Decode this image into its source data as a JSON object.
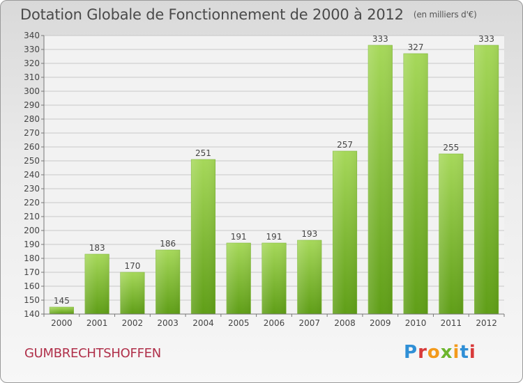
{
  "header": {
    "title": "Dotation Globale de Fonctionnement de 2000 à 2012",
    "unit": "(en milliers d'€)"
  },
  "footer": {
    "commune": "GUMBRECHTSHOFFEN",
    "logo": "Proxiti"
  },
  "colors": {
    "bar_light": "#a6d85a",
    "bar_dark": "#5f9e17",
    "grid": "#c8c8c8",
    "axis": "#777777"
  },
  "chart_data": {
    "type": "bar",
    "categories": [
      "2000",
      "2001",
      "2002",
      "2003",
      "2004",
      "2005",
      "2006",
      "2007",
      "2008",
      "2009",
      "2010",
      "2011",
      "2012"
    ],
    "values": [
      145,
      183,
      170,
      186,
      251,
      191,
      191,
      193,
      257,
      333,
      327,
      255,
      333
    ],
    "title": "Dotation Globale de Fonctionnement de 2000 à 2012",
    "xlabel": "",
    "ylabel": "",
    "ylim": [
      140,
      340
    ],
    "yticks": [
      140,
      150,
      160,
      170,
      180,
      190,
      200,
      210,
      220,
      230,
      240,
      250,
      260,
      270,
      280,
      290,
      300,
      310,
      320,
      330,
      340
    ],
    "grid": true,
    "data_labels": true
  }
}
